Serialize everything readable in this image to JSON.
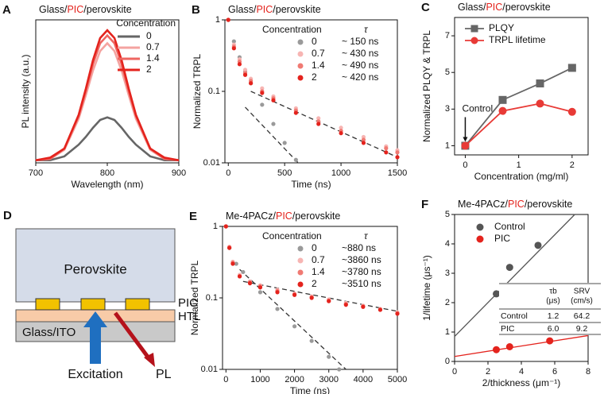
{
  "chart_data": [
    {
      "type": "line",
      "label": "A",
      "title": [
        {
          "text": "Glass/",
          "color": "#111"
        },
        {
          "text": "PIC",
          "color": "#e4231d"
        },
        {
          "text": "/perovskite",
          "color": "#111"
        }
      ],
      "xlabel": "Wavelength (nm)",
      "ylabel": "PL intensity (a.u.)",
      "xlim": [
        700,
        900
      ],
      "xticks": [
        700,
        800,
        900
      ],
      "ylim": [
        0,
        1.1
      ],
      "legend_title": "Concentration",
      "x": [
        700,
        720,
        740,
        760,
        770,
        780,
        790,
        800,
        810,
        820,
        830,
        840,
        860,
        880,
        900
      ],
      "series": [
        {
          "name": "0",
          "color": "#666666",
          "values": [
            0.02,
            0.02,
            0.05,
            0.14,
            0.2,
            0.27,
            0.33,
            0.35,
            0.33,
            0.27,
            0.2,
            0.14,
            0.05,
            0.02,
            0.02
          ]
        },
        {
          "name": "0.7",
          "color": "#f4a3a0",
          "values": [
            0.02,
            0.03,
            0.1,
            0.34,
            0.52,
            0.71,
            0.86,
            0.92,
            0.86,
            0.71,
            0.52,
            0.34,
            0.1,
            0.03,
            0.02
          ]
        },
        {
          "name": "1.4",
          "color": "#ee6661",
          "values": [
            0.02,
            0.03,
            0.11,
            0.36,
            0.55,
            0.76,
            0.92,
            0.98,
            0.92,
            0.76,
            0.55,
            0.36,
            0.11,
            0.03,
            0.02
          ]
        },
        {
          "name": "2",
          "color": "#e4231d",
          "values": [
            0.02,
            0.04,
            0.11,
            0.37,
            0.57,
            0.79,
            0.96,
            1.02,
            0.96,
            0.79,
            0.57,
            0.37,
            0.11,
            0.04,
            0.02
          ]
        }
      ]
    },
    {
      "type": "scatter",
      "label": "B",
      "title": [
        {
          "text": "Glass/",
          "color": "#111"
        },
        {
          "text": "PIC",
          "color": "#e4231d"
        },
        {
          "text": "/perovskite",
          "color": "#111"
        }
      ],
      "xlabel": "Time (ns)",
      "ylabel": "Normalized TRPL",
      "xlim": [
        -30,
        1500
      ],
      "xticks": [
        0,
        500,
        1000,
        1500
      ],
      "ylim": [
        0.01,
        1
      ],
      "yticks": [
        0.01,
        0.1,
        1
      ],
      "yscale": "log",
      "legend_title": [
        "Concentration",
        "τ"
      ],
      "series": [
        {
          "name": "0",
          "label": "~ 150 ns",
          "color": "#9a9a9a",
          "x": [
            0,
            50,
            100,
            150,
            200,
            300,
            400,
            500,
            600
          ],
          "values": [
            1,
            0.5,
            0.3,
            0.19,
            0.13,
            0.065,
            0.035,
            0.019,
            0.011
          ]
        },
        {
          "name": "0.7",
          "label": "~ 430 ns",
          "color": "#f7b5b3",
          "x": [
            0,
            50,
            100,
            150,
            200,
            300,
            400,
            600,
            800,
            1000,
            1200,
            1400,
            1500
          ],
          "values": [
            1,
            0.45,
            0.28,
            0.2,
            0.15,
            0.11,
            0.085,
            0.058,
            0.042,
            0.031,
            0.023,
            0.017,
            0.015
          ]
        },
        {
          "name": "1.4",
          "label": "~ 490 ns",
          "color": "#f07a73",
          "x": [
            0,
            50,
            100,
            150,
            200,
            300,
            400,
            600,
            800,
            1000,
            1200,
            1400,
            1500
          ],
          "values": [
            1,
            0.42,
            0.26,
            0.18,
            0.14,
            0.1,
            0.08,
            0.054,
            0.038,
            0.028,
            0.021,
            0.016,
            0.014
          ]
        },
        {
          "name": "2",
          "label": "~ 420 ns",
          "color": "#e4231d",
          "x": [
            0,
            50,
            100,
            150,
            200,
            300,
            400,
            600,
            800,
            1000,
            1200,
            1400,
            1500
          ],
          "values": [
            1,
            0.4,
            0.24,
            0.17,
            0.13,
            0.095,
            0.075,
            0.05,
            0.035,
            0.026,
            0.019,
            0.014,
            0.012
          ]
        }
      ],
      "fits": [
        {
          "color": "#333333",
          "x": [
            150,
            620
          ],
          "values": [
            0.06,
            0.01
          ]
        },
        {
          "color": "#333333",
          "x": [
            200,
            1500
          ],
          "values": [
            0.1,
            0.012
          ]
        }
      ]
    },
    {
      "type": "line",
      "label": "C",
      "title": [
        {
          "text": "Glass/",
          "color": "#111"
        },
        {
          "text": "PIC",
          "color": "#e4231d"
        },
        {
          "text": "/perovskite",
          "color": "#111"
        }
      ],
      "xlabel": "Concentration (mg/ml)",
      "ylabel": "Normalized PLQY & TRPL",
      "xlim": [
        -0.2,
        2.3
      ],
      "xticks": [
        0,
        1,
        2
      ],
      "ylim": [
        0.5,
        8
      ],
      "yticks": [
        1,
        3,
        5,
        7
      ],
      "x": [
        0,
        0.7,
        1.4,
        2
      ],
      "series": [
        {
          "name": "PLQY",
          "color": "#666666",
          "marker": "square",
          "values": [
            1,
            3.5,
            4.4,
            5.25
          ]
        },
        {
          "name": "TRPL lifetime",
          "color": "#e83a36",
          "marker": "circle",
          "values": [
            1,
            2.9,
            3.3,
            2.85
          ]
        }
      ],
      "annotations": [
        {
          "text": "Control",
          "x": 0,
          "y": 1
        }
      ]
    },
    {
      "type": "scatter",
      "label": "E",
      "title": [
        {
          "text": "Me-4PACz/",
          "color": "#111"
        },
        {
          "text": "PIC",
          "color": "#e4231d"
        },
        {
          "text": "/perovskite",
          "color": "#111"
        }
      ],
      "xlabel": "Time (ns)",
      "ylabel": "Normalized TRPL",
      "xlim": [
        -100,
        5000
      ],
      "xticks": [
        0,
        1000,
        2000,
        3000,
        4000,
        5000
      ],
      "ylim": [
        0.01,
        1
      ],
      "yticks": [
        0.01,
        0.1,
        1
      ],
      "yscale": "log",
      "legend_title": [
        "Concentration",
        "τ"
      ],
      "series": [
        {
          "name": "0",
          "label": "~880 ns",
          "color": "#9a9a9a",
          "x": [
            0,
            100,
            300,
            500,
            1000,
            1500,
            2000,
            2500,
            3000,
            3300
          ],
          "values": [
            1,
            0.5,
            0.3,
            0.23,
            0.12,
            0.07,
            0.04,
            0.025,
            0.015,
            0.01
          ]
        },
        {
          "name": "0.7",
          "label": "~3860 ns",
          "color": "#f7b5b3",
          "x": [
            0,
            100,
            200,
            400,
            700,
            1000,
            1500,
            2000,
            2500,
            3000,
            3500,
            4000,
            4500,
            5000
          ],
          "values": [
            1,
            0.52,
            0.32,
            0.21,
            0.17,
            0.15,
            0.13,
            0.115,
            0.105,
            0.095,
            0.085,
            0.078,
            0.07,
            0.063
          ]
        },
        {
          "name": "1.4",
          "label": "~3780 ns",
          "color": "#f07a73",
          "x": [
            0,
            100,
            200,
            400,
            700,
            1000,
            1500,
            2000,
            2500,
            3000,
            3500,
            4000,
            4500,
            5000
          ],
          "values": [
            1,
            0.51,
            0.31,
            0.2,
            0.165,
            0.145,
            0.125,
            0.112,
            0.102,
            0.092,
            0.082,
            0.076,
            0.069,
            0.061
          ]
        },
        {
          "name": "2",
          "label": "~3510 ns",
          "color": "#e4231d",
          "x": [
            0,
            100,
            200,
            400,
            700,
            1000,
            1500,
            2000,
            2500,
            3000,
            3500,
            4000,
            4500,
            5000
          ],
          "values": [
            1,
            0.5,
            0.3,
            0.2,
            0.16,
            0.14,
            0.12,
            0.11,
            0.1,
            0.09,
            0.08,
            0.075,
            0.068,
            0.06
          ]
        }
      ],
      "fits": [
        {
          "color": "#333333",
          "x": [
            400,
            3500
          ],
          "values": [
            0.25,
            0.01
          ]
        },
        {
          "color": "#333333",
          "x": [
            500,
            5000
          ],
          "values": [
            0.17,
            0.065
          ]
        }
      ]
    },
    {
      "type": "scatter",
      "label": "F",
      "title": [
        {
          "text": "Me-4PACz/",
          "color": "#111"
        },
        {
          "text": "PIC",
          "color": "#e4231d"
        },
        {
          "text": "/perovskite",
          "color": "#111"
        }
      ],
      "xlabel": "2/thickness (μm⁻¹)",
      "ylabel": "1/lifetime (μs⁻¹)",
      "xlim": [
        0,
        8
      ],
      "xticks": [
        0,
        2,
        4,
        6,
        8
      ],
      "ylim": [
        0,
        5
      ],
      "yticks": [
        0,
        1,
        2,
        3,
        4,
        5
      ],
      "series": [
        {
          "name": "Control",
          "color": "#555555",
          "x": [
            2.5,
            3.3,
            5
          ],
          "values": [
            2.3,
            3.2,
            3.95
          ]
        },
        {
          "name": "PIC",
          "color": "#e4231d",
          "x": [
            2.5,
            3.3,
            5.7
          ],
          "values": [
            0.4,
            0.5,
            0.7
          ]
        }
      ],
      "fits": [
        {
          "color": "#555555",
          "x": [
            0,
            7.2
          ],
          "values": [
            0.85,
            5
          ]
        },
        {
          "color": "#e4231d",
          "x": [
            0,
            8
          ],
          "values": [
            0.17,
            0.88
          ]
        }
      ],
      "table": {
        "header": [
          [
            "τb",
            "(μs)"
          ],
          [
            "SRV",
            "(cm/s)"
          ]
        ],
        "rows": [
          [
            "Control",
            "1.2",
            "64.2"
          ],
          [
            "PIC",
            "6.0",
            "9.2"
          ]
        ]
      }
    }
  ],
  "diagram": {
    "label": "D",
    "perovskite": "Perovskite",
    "pic": "PIC",
    "htl": "HTL",
    "substrate": "Glass/ITO",
    "excitation": "Excitation",
    "pl": "PL"
  }
}
